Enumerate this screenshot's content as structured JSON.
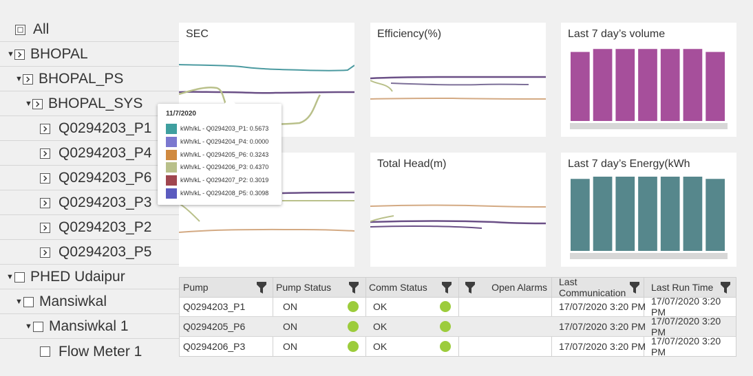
{
  "tree": {
    "items": [
      {
        "label": "All",
        "expander": "none",
        "icon": "checkbox"
      },
      {
        "label": "BHOPAL",
        "expander": "expanded",
        "icon": "chevron"
      },
      {
        "label": "BHOPAL_PS",
        "expander": "expanded",
        "icon": "chevron"
      },
      {
        "label": "BHOPAL_SYS",
        "expander": "expanded",
        "icon": "chevron"
      },
      {
        "label": "Q0294203_P1",
        "expander": "none",
        "icon": "chevron"
      },
      {
        "label": "Q0294203_P4",
        "expander": "none",
        "icon": "chevron"
      },
      {
        "label": "Q0294203_P6",
        "expander": "none",
        "icon": "chevron"
      },
      {
        "label": "Q0294203_P3",
        "expander": "none",
        "icon": "chevron"
      },
      {
        "label": "Q0294203_P2",
        "expander": "none",
        "icon": "chevron"
      },
      {
        "label": "Q0294203_P5",
        "expander": "none",
        "icon": "chevron"
      },
      {
        "label": "PHED Udaipur",
        "expander": "expanded",
        "icon": "checkbox"
      },
      {
        "label": "Mansiwkal",
        "expander": "expanded",
        "icon": "checkbox"
      },
      {
        "label": "Mansiwkal 1",
        "expander": "expanded",
        "icon": "checkbox"
      },
      {
        "label": "Flow Meter 1",
        "expander": "none",
        "icon": "checkbox"
      }
    ]
  },
  "panels": {
    "sec": {
      "title": "SEC"
    },
    "efficiency": {
      "title": "Efficiency(%)"
    },
    "volume": {
      "title": "Last 7 day’s volume"
    },
    "total_head": {
      "title": "Total Head(m)"
    },
    "energy": {
      "title": "Last 7 day’s Energy(kWh"
    }
  },
  "tooltip": {
    "date": "11/7/2020",
    "rows": [
      {
        "text": "kWh/kL - Q0294203_P1: 0.5673",
        "color": "#3f9f9f"
      },
      {
        "text": "kWh/kL - Q0294204_P4: 0.0000",
        "color": "#7b78cf"
      },
      {
        "text": "kWh/kL - Q0294205_P6: 0.3243",
        "color": "#d08a40"
      },
      {
        "text": "kWh/kL - Q0294206_P3: 0.4370",
        "color": "#b9c08a"
      },
      {
        "text": "kWh/kL - Q0294207_P2: 0.3019",
        "color": "#a0464f"
      },
      {
        "text": "kWh/kL - Q0294208_P5: 0.3098",
        "color": "#5b5bbf"
      }
    ]
  },
  "chart_data": [
    {
      "type": "bar",
      "title": "Last 7 day’s volume",
      "categories": [
        "",
        "",
        "",
        "",
        "",
        "",
        ""
      ],
      "values": [
        0.93,
        0.97,
        0.97,
        0.97,
        0.97,
        0.97,
        0.93
      ],
      "color": "#a64f9b",
      "ylim": [
        0,
        1
      ]
    },
    {
      "type": "bar",
      "title": "Last 7 day’s Energy(kWh",
      "categories": [
        "",
        "",
        "",
        "",
        "",
        "",
        ""
      ],
      "values": [
        0.97,
        1.0,
        1.0,
        1.0,
        1.0,
        1.0,
        0.97
      ],
      "color": "#56878c",
      "ylim": [
        0,
        1
      ]
    }
  ],
  "grid": {
    "columns": [
      "Pump",
      "Pump Status",
      "Comm Status",
      "Open Alarms",
      "Last Communication",
      "Last Run Time"
    ],
    "rows": [
      {
        "pump": "Q0294203_P1",
        "status": "ON",
        "comm": "OK",
        "alarms": "",
        "last_comm": "17/07/2020 3:20 PM",
        "last_run": "17/07/2020 3:20 PM"
      },
      {
        "pump": "Q0294205_P6",
        "status": "ON",
        "comm": "OK",
        "alarms": "",
        "last_comm": "17/07/2020 3:20 PM",
        "last_run": "17/07/2020 3:20 PM"
      },
      {
        "pump": "Q0294206_P3",
        "status": "ON",
        "comm": "OK",
        "alarms": "",
        "last_comm": "17/07/2020 3:20 PM",
        "last_run": "17/07/2020 3:20 PM"
      }
    ],
    "status_color": "#9ccc3c"
  }
}
